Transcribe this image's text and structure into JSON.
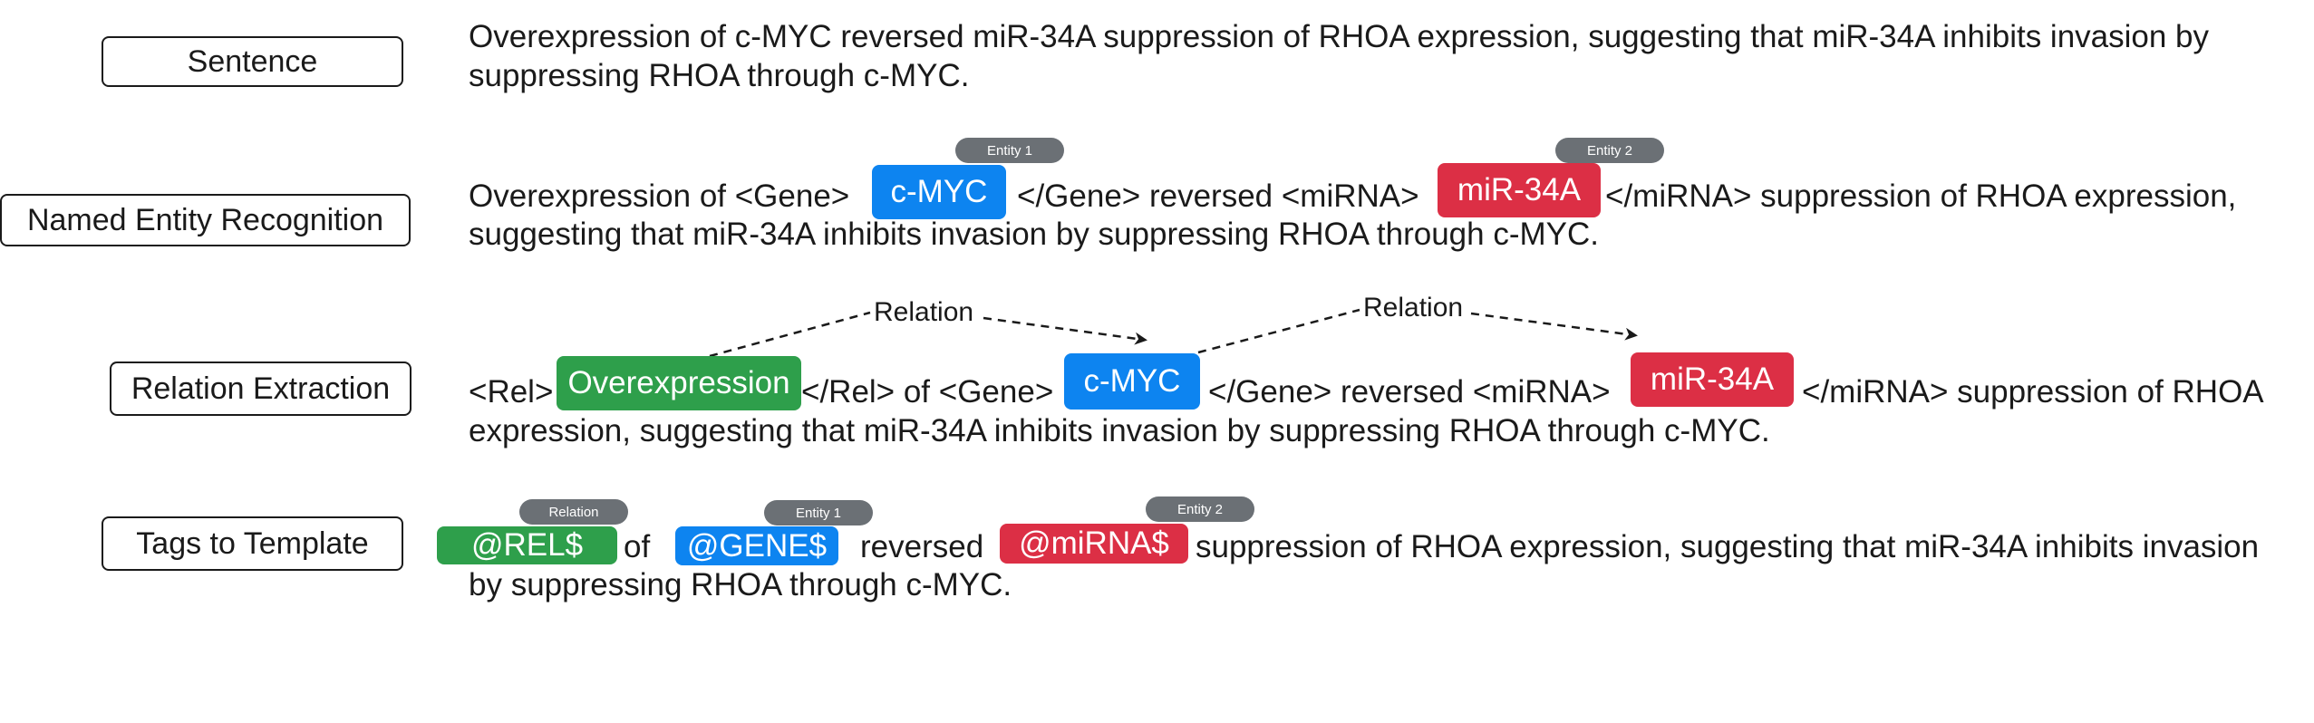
{
  "labels": {
    "sentence": "Sentence",
    "ner": "Named Entity Recognition",
    "re": "Relation Extraction",
    "template": "Tags to Template"
  },
  "sentence": {
    "line1": "Overexpression of c-MYC reversed miR-34A suppression of RHOA expression, suggesting that miR-34A inhibits invasion by",
    "line2": "suppressing RHOA through c-MYC."
  },
  "ner": {
    "pre": "Overexpression of <Gene>",
    "entity1": "c-MYC",
    "mid": "</Gene> reversed <miRNA>",
    "entity2": "miR-34A",
    "post": "</miRNA> suppression of RHOA expression,",
    "line2": "suggesting that miR-34A inhibits invasion by suppressing RHOA through c-MYC.",
    "tab1": "Entity 1",
    "tab2": "Entity 2"
  },
  "re": {
    "pre": "<Rel>",
    "relation": "Overexpression",
    "mid1": "</Rel> of <Gene>",
    "entity1": "c-MYC",
    "mid2": "</Gene> reversed <miRNA>",
    "entity2": "miR-34A",
    "post": "</miRNA> suppression of RHOA",
    "line2": "expression, suggesting that miR-34A inhibits invasion by suppressing RHOA through c-MYC.",
    "arrow1_label": "Relation",
    "arrow2_label": "Relation"
  },
  "template": {
    "rel_tag": "@REL$",
    "of": "of",
    "gene_tag": "@GENE$",
    "reversed": "reversed",
    "mirna_tag": "@miRNA$",
    "post": "suppression of RHOA expression, suggesting that miR-34A inhibits invasion",
    "line2": "by suppressing RHOA through c-MYC.",
    "tab_rel": "Relation",
    "tab1": "Entity 1",
    "tab2": "Entity 2"
  },
  "colors": {
    "gene": "#0d84f0",
    "mirna": "#dc2f45",
    "relation": "#2e9f4b",
    "tab": "#6b7075"
  }
}
